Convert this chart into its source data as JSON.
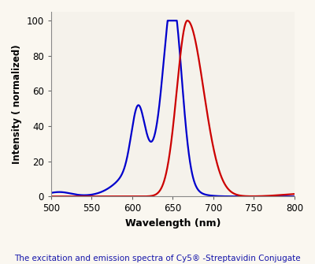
{
  "title": "",
  "xlabel": "Wavelength (nm)",
  "ylabel": "Intensity ( normalized)",
  "caption": "The excitation and emission spectra of Cy5® -Streptavidin Conjugate",
  "xlim": [
    500,
    800
  ],
  "ylim": [
    0,
    105
  ],
  "xticks": [
    500,
    550,
    600,
    650,
    700,
    750,
    800
  ],
  "yticks": [
    0,
    20,
    40,
    60,
    80,
    100
  ],
  "blue_color": "#0000cc",
  "red_color": "#cc0000",
  "bg_color": "#faf7f0",
  "plot_bg": "#f5f2eb",
  "line_width": 1.6
}
